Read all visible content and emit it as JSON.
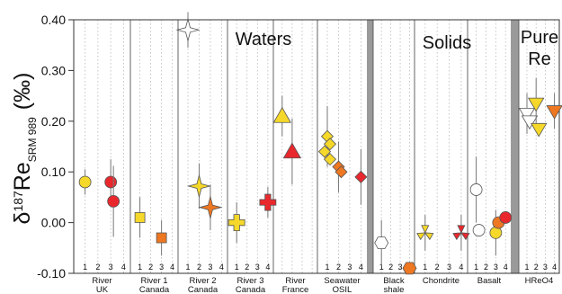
{
  "chart_data": {
    "type": "scatter",
    "title": "",
    "ylabel": "δ187Re",
    "ylabel_sub": "SRM 989",
    "ylabel_unit": "(‰)",
    "ylim": [
      -0.1,
      0.4
    ],
    "yticks": [
      "0.40",
      "0.30",
      "0.20",
      "0.10",
      "0.00",
      "-0.10"
    ],
    "ytick_values": [
      0.4,
      0.3,
      0.2,
      0.1,
      0.0,
      -0.1
    ],
    "grid": "vertical dotted",
    "group_labels": [
      {
        "text": "Waters"
      },
      {
        "text": "Solids"
      },
      {
        "text": "Pure"
      },
      {
        "text": "Re"
      }
    ],
    "panels": [
      {
        "label": [
          "River",
          "UK"
        ],
        "ticks": [
          "1",
          "2",
          "3",
          "4"
        ]
      },
      {
        "label": [
          "River 1",
          "Canada"
        ],
        "ticks": [
          "1",
          "2",
          "3",
          "4"
        ]
      },
      {
        "label": [
          "River 2",
          "Canada"
        ],
        "ticks": [
          "1",
          "2",
          "3",
          "4"
        ]
      },
      {
        "label": [
          "River 3",
          "Canada"
        ],
        "ticks": [
          "1",
          "2",
          "3",
          "4"
        ]
      },
      {
        "label": [
          "River",
          "France"
        ],
        "ticks": []
      },
      {
        "label": [
          "Seawater",
          "OSIL"
        ],
        "ticks": [
          "1",
          "2",
          "3",
          "4"
        ]
      },
      {
        "label": [
          "Black",
          "shale"
        ],
        "ticks": [
          "1",
          "2",
          "3",
          "4"
        ]
      },
      {
        "label": [
          "Chondrite"
        ],
        "ticks": [
          "1",
          "2",
          "3",
          "4"
        ]
      },
      {
        "label": [
          "Basalt"
        ],
        "ticks": [
          "1",
          "2",
          "3",
          "4"
        ]
      },
      {
        "label": [
          "HReO4"
        ],
        "ticks": [
          "1",
          "2",
          "3",
          "4"
        ]
      }
    ],
    "series": [
      {
        "panel": 0,
        "marker": "circle",
        "color": "#f5d829",
        "x": 1,
        "y": 0.08,
        "err": 0.025
      },
      {
        "panel": 0,
        "marker": "circle",
        "color": "#e8282d",
        "x": 3,
        "y": 0.08,
        "err": 0.045
      },
      {
        "panel": 0,
        "marker": "circle",
        "color": "#e8282d",
        "x": 3,
        "y": 0.042,
        "err": 0.07
      },
      {
        "panel": 1,
        "marker": "square",
        "color": "#f5d829",
        "x": 1,
        "y": 0.01,
        "err": 0.04
      },
      {
        "panel": 1,
        "marker": "square",
        "color": "#ee7722",
        "x": 3,
        "y": -0.03,
        "err": 0.035
      },
      {
        "panel": 2,
        "marker": "star",
        "color": "#ffffff",
        "x": 1,
        "y": 0.38,
        "err": 0.035
      },
      {
        "panel": 2,
        "marker": "star",
        "color": "#f5d829",
        "x": 2,
        "y": 0.072,
        "err": 0.045
      },
      {
        "panel": 2,
        "marker": "star",
        "color": "#ee7722",
        "x": 3,
        "y": 0.03,
        "err": 0.045
      },
      {
        "panel": 3,
        "marker": "cross",
        "color": "#f5d829",
        "x": 1,
        "y": 0.0,
        "err": 0.04
      },
      {
        "panel": 3,
        "marker": "cross",
        "color": "#e8282d",
        "x": 4,
        "y": 0.04,
        "err": 0.03
      },
      {
        "panel": 4,
        "marker": "triangle",
        "color": "#f5d829",
        "x": 1,
        "y": 0.21,
        "err": 0.04
      },
      {
        "panel": 4,
        "marker": "triangle",
        "color": "#e8282d",
        "x": 2,
        "y": 0.14,
        "err": 0.065
      },
      {
        "panel": 5,
        "marker": "diamond",
        "color": "#f5d829",
        "x": 1,
        "y": 0.17,
        "err": 0.06
      },
      {
        "panel": 5,
        "marker": "diamond",
        "color": "#f5d829",
        "x": 1,
        "y": 0.155,
        "err": 0.0
      },
      {
        "panel": 5,
        "marker": "diamond",
        "color": "#f5d829",
        "x": 1,
        "y": 0.14,
        "err": 0.0
      },
      {
        "panel": 5,
        "marker": "diamond",
        "color": "#f5d829",
        "x": 1,
        "y": 0.125,
        "err": 0.0
      },
      {
        "panel": 5,
        "marker": "diamond",
        "color": "#ee7722",
        "x": 2,
        "y": 0.11,
        "err": 0.05
      },
      {
        "panel": 5,
        "marker": "diamond",
        "color": "#ee7722",
        "x": 2,
        "y": 0.1,
        "err": 0.0
      },
      {
        "panel": 5,
        "marker": "diamond",
        "color": "#e8282d",
        "x": 4,
        "y": 0.09,
        "err": 0.055
      },
      {
        "panel": 6,
        "marker": "hexagon",
        "color": "#ffffff",
        "x": 1,
        "y": -0.04,
        "err": 0.045
      },
      {
        "panel": 6,
        "marker": "hexagon",
        "color": "#ee7722",
        "x": 4,
        "y": -0.09,
        "err": 0.01
      },
      {
        "panel": 7,
        "marker": "tri3",
        "color": "#f5d829",
        "x": 1,
        "y": -0.02,
        "err": 0.035
      },
      {
        "panel": 7,
        "marker": "tri3",
        "color": "#e8282d",
        "x": 4,
        "y": -0.02,
        "err": 0.035
      },
      {
        "panel": 8,
        "marker": "circle",
        "color": "#ffffff",
        "x": 1,
        "y": 0.065,
        "err": 0.065
      },
      {
        "panel": 8,
        "marker": "circle",
        "color": "#ffffff",
        "x": 1,
        "y": -0.015,
        "err": 0.0
      },
      {
        "panel": 8,
        "marker": "circle",
        "color": "#f5d829",
        "x": 3,
        "y": -0.02,
        "err": 0.045
      },
      {
        "panel": 8,
        "marker": "circle",
        "color": "#ee7722",
        "x": 3,
        "y": 0.0,
        "err": 0.0
      },
      {
        "panel": 8,
        "marker": "circle",
        "color": "#e8282d",
        "x": 4,
        "y": 0.01,
        "err": 0.0
      },
      {
        "panel": 9,
        "marker": "tridown",
        "color": "#ffffff",
        "x": 1,
        "y": 0.215,
        "err": 0.04
      },
      {
        "panel": 9,
        "marker": "tridown",
        "color": "#ffffff",
        "x": 1,
        "y": 0.2,
        "err": 0.0
      },
      {
        "panel": 9,
        "marker": "tridown",
        "color": "#f5d829",
        "x": 2,
        "y": 0.235,
        "err": 0.05
      },
      {
        "panel": 9,
        "marker": "tridown",
        "color": "#f5d829",
        "x": 2,
        "y": 0.185,
        "err": 0.0
      },
      {
        "panel": 9,
        "marker": "tridown",
        "color": "#ee7722",
        "x": 4,
        "y": 0.22,
        "err": 0.035
      }
    ]
  }
}
